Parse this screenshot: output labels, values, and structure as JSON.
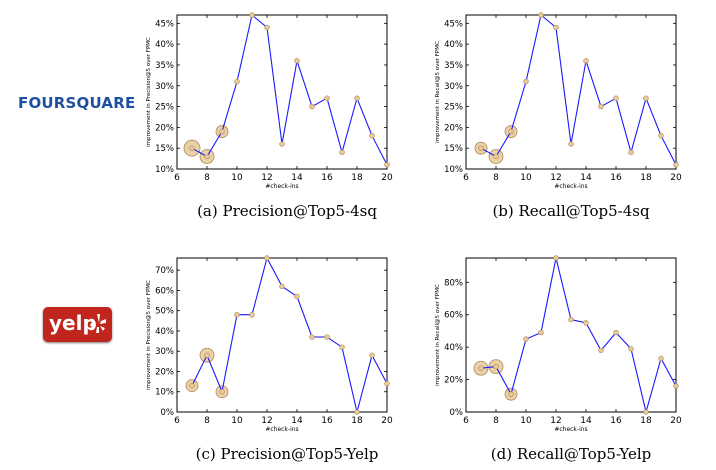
{
  "logos": {
    "foursquare": "FOURSQUARE",
    "yelp": "yelp"
  },
  "colors": {
    "line": "#1a1aff",
    "marker_fill": "#e8c99a",
    "marker_edge": "#b08a55",
    "foursquare_brand": "#1e4fa1",
    "yelp_brand": "#c0261d"
  },
  "chart_data": [
    {
      "type": "line",
      "caption": "(a) Precision@Top5-4sq",
      "ylabel": "improvement in Precision@5 over FPMC",
      "xlabel": "#check-ins",
      "x": [
        7,
        8,
        9,
        10,
        11,
        12,
        13,
        14,
        15,
        16,
        17,
        18,
        19,
        20
      ],
      "values": [
        15,
        13,
        19,
        31,
        47,
        44,
        16,
        36,
        25,
        27,
        14,
        27,
        18,
        11
      ],
      "xlim": [
        6,
        20
      ],
      "ylim": [
        10,
        47
      ],
      "xticks": [
        6,
        8,
        10,
        12,
        14,
        16,
        18,
        20
      ],
      "yticks": [
        10,
        15,
        20,
        25,
        30,
        35,
        40,
        45
      ],
      "ytick_suffix": "%",
      "highlights": [
        [
          7,
          15,
          8
        ],
        [
          8,
          13,
          7
        ],
        [
          9,
          19,
          6
        ]
      ]
    },
    {
      "type": "line",
      "caption": "(b) Recall@Top5-4sq",
      "ylabel": "improvement in Recall@5 over FPMC",
      "xlabel": "#check-ins",
      "x": [
        7,
        8,
        9,
        10,
        11,
        12,
        13,
        14,
        15,
        16,
        17,
        18,
        19,
        20
      ],
      "values": [
        15,
        13,
        19,
        31,
        47,
        44,
        16,
        36,
        25,
        27,
        14,
        27,
        18,
        11
      ],
      "xlim": [
        6,
        20
      ],
      "ylim": [
        10,
        47
      ],
      "xticks": [
        6,
        8,
        10,
        12,
        14,
        16,
        18,
        20
      ],
      "yticks": [
        10,
        15,
        20,
        25,
        30,
        35,
        40,
        45
      ],
      "ytick_suffix": "%",
      "highlights": [
        [
          7,
          15,
          6
        ],
        [
          8,
          13,
          7
        ],
        [
          9,
          19,
          6
        ]
      ]
    },
    {
      "type": "line",
      "caption": "(c) Precision@Top5-Yelp",
      "ylabel": "improvement in Precision@5 over FPMC",
      "xlabel": "#check-ins",
      "x": [
        7,
        8,
        9,
        10,
        11,
        12,
        13,
        14,
        15,
        16,
        17,
        18,
        19,
        20
      ],
      "values": [
        13,
        28,
        10,
        48,
        48,
        76,
        62,
        57,
        37,
        37,
        32,
        0,
        28,
        14
      ],
      "xlim": [
        6,
        20
      ],
      "ylim": [
        0,
        76
      ],
      "xticks": [
        6,
        8,
        10,
        12,
        14,
        16,
        18,
        20
      ],
      "yticks": [
        0,
        10,
        20,
        30,
        40,
        50,
        60,
        70
      ],
      "ytick_suffix": "%",
      "highlights": [
        [
          7,
          13,
          6
        ],
        [
          8,
          28,
          7
        ],
        [
          9,
          10,
          6
        ]
      ]
    },
    {
      "type": "line",
      "caption": "(d) Recall@Top5-Yelp",
      "ylabel": "improvement in Recall@5 over FPMC",
      "xlabel": "#check-ins",
      "x": [
        7,
        8,
        9,
        10,
        11,
        12,
        13,
        14,
        15,
        16,
        17,
        18,
        19,
        20
      ],
      "values": [
        27,
        28,
        11,
        45,
        49,
        95,
        57,
        55,
        38,
        49,
        39,
        0,
        33,
        16
      ],
      "xlim": [
        6,
        20
      ],
      "ylim": [
        0,
        95
      ],
      "xticks": [
        6,
        8,
        10,
        12,
        14,
        16,
        18,
        20
      ],
      "yticks": [
        0,
        20,
        40,
        60,
        80
      ],
      "ytick_suffix": "%",
      "highlights": [
        [
          7,
          27,
          7
        ],
        [
          8,
          28,
          7
        ],
        [
          9,
          11,
          6
        ]
      ]
    }
  ]
}
